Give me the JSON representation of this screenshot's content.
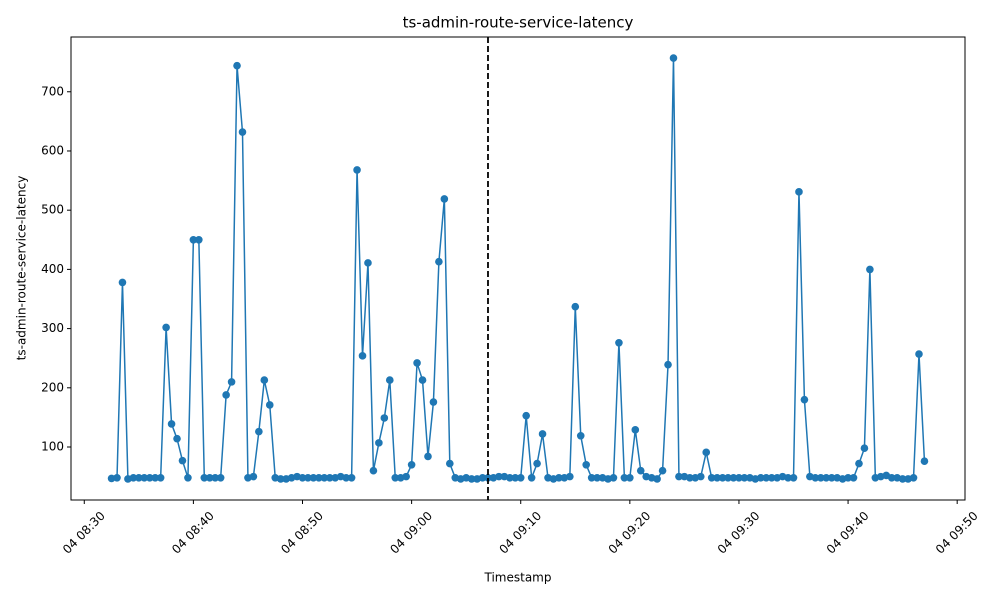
{
  "chart_data": {
    "type": "line",
    "title": "ts-admin-route-service-latency",
    "x_label": "Timestamp",
    "y_label": "ts-admin-route-service-latency",
    "color": "#1f77b4",
    "x": [
      "04 08:32:30",
      "04 08:33:00",
      "04 08:33:30",
      "04 08:34:00",
      "04 08:34:30",
      "04 08:35:00",
      "04 08:35:30",
      "04 08:36:00",
      "04 08:36:30",
      "04 08:37:00",
      "04 08:37:30",
      "04 08:38:00",
      "04 08:38:30",
      "04 08:39:00",
      "04 08:39:30",
      "04 08:40:00",
      "04 08:40:30",
      "04 08:41:00",
      "04 08:41:30",
      "04 08:42:00",
      "04 08:42:30",
      "04 08:43:00",
      "04 08:43:30",
      "04 08:44:00",
      "04 08:44:30",
      "04 08:45:00",
      "04 08:45:30",
      "04 08:46:00",
      "04 08:46:30",
      "04 08:47:00",
      "04 08:47:30",
      "04 08:48:00",
      "04 08:48:30",
      "04 08:49:00",
      "04 08:49:30",
      "04 08:50:00",
      "04 08:50:30",
      "04 08:51:00",
      "04 08:51:30",
      "04 08:52:00",
      "04 08:52:30",
      "04 08:53:00",
      "04 08:53:30",
      "04 08:54:00",
      "04 08:54:30",
      "04 08:55:00",
      "04 08:55:30",
      "04 08:56:00",
      "04 08:56:30",
      "04 08:57:00",
      "04 08:57:30",
      "04 08:58:00",
      "04 08:58:30",
      "04 08:59:00",
      "04 08:59:30",
      "04 09:00:00",
      "04 09:00:30",
      "04 09:01:00",
      "04 09:01:30",
      "04 09:02:00",
      "04 09:02:30",
      "04 09:03:00",
      "04 09:03:30",
      "04 09:04:00",
      "04 09:04:30",
      "04 09:05:00",
      "04 09:05:30",
      "04 09:06:00",
      "04 09:06:30",
      "04 09:07:00",
      "04 09:07:30",
      "04 09:08:00",
      "04 09:08:30",
      "04 09:09:00",
      "04 09:09:30",
      "04 09:10:00",
      "04 09:10:30",
      "04 09:11:00",
      "04 09:11:30",
      "04 09:12:00",
      "04 09:12:30",
      "04 09:13:00",
      "04 09:13:30",
      "04 09:14:00",
      "04 09:14:30",
      "04 09:15:00",
      "04 09:15:30",
      "04 09:16:00",
      "04 09:16:30",
      "04 09:17:00",
      "04 09:17:30",
      "04 09:18:00",
      "04 09:18:30",
      "04 09:19:00",
      "04 09:19:30",
      "04 09:20:00",
      "04 09:20:30",
      "04 09:21:00",
      "04 09:21:30",
      "04 09:22:00",
      "04 09:22:30",
      "04 09:23:00",
      "04 09:23:30",
      "04 09:24:00",
      "04 09:24:30",
      "04 09:25:00",
      "04 09:25:30",
      "04 09:26:00",
      "04 09:26:30",
      "04 09:27:00",
      "04 09:27:30",
      "04 09:28:00",
      "04 09:28:30",
      "04 09:29:00",
      "04 09:29:30",
      "04 09:30:00",
      "04 09:30:30",
      "04 09:31:00",
      "04 09:31:30",
      "04 09:32:00",
      "04 09:32:30",
      "04 09:33:00",
      "04 09:33:30",
      "04 09:34:00",
      "04 09:34:30",
      "04 09:35:00",
      "04 09:35:30",
      "04 09:36:00",
      "04 09:36:30",
      "04 09:37:00",
      "04 09:37:30",
      "04 09:38:00",
      "04 09:38:30",
      "04 09:39:00",
      "04 09:39:30",
      "04 09:40:00",
      "04 09:40:30",
      "04 09:41:00",
      "04 09:41:30",
      "04 09:42:00",
      "04 09:42:30",
      "04 09:43:00",
      "04 09:43:30",
      "04 09:44:00",
      "04 09:44:30",
      "04 09:45:00",
      "04 09:45:30",
      "04 09:46:00",
      "04 09:46:30",
      "04 09:47:00"
    ],
    "values": [
      47,
      48,
      378,
      46,
      48,
      48,
      48,
      48,
      48,
      48,
      302,
      139,
      114,
      77,
      48,
      450,
      450,
      48,
      48,
      48,
      48,
      188,
      210,
      744,
      632,
      48,
      50,
      126,
      213,
      171,
      48,
      46,
      46,
      48,
      50,
      48,
      48,
      48,
      48,
      48,
      48,
      48,
      50,
      48,
      48,
      568,
      254,
      411,
      60,
      107,
      149,
      213,
      48,
      48,
      50,
      70,
      242,
      213,
      84,
      176,
      413,
      519,
      72,
      48,
      46,
      48,
      46,
      46,
      48,
      48,
      48,
      50,
      50,
      48,
      48,
      48,
      153,
      48,
      72,
      122,
      48,
      46,
      48,
      48,
      50,
      337,
      119,
      70,
      48,
      48,
      48,
      46,
      48,
      276,
      48,
      48,
      129,
      60,
      50,
      48,
      46,
      60,
      239,
      757,
      50,
      50,
      48,
      48,
      50,
      91,
      48,
      48,
      48,
      48,
      48,
      48,
      48,
      48,
      46,
      48,
      48,
      48,
      48,
      50,
      48,
      48,
      531,
      180,
      50,
      48,
      48,
      48,
      48,
      48,
      46,
      48,
      48,
      72,
      98,
      400,
      48,
      50,
      52,
      48,
      48,
      46,
      46,
      48,
      257,
      76
    ],
    "vline_x": "04 09:07:00",
    "xlim": [
      "04 08:28:47",
      "04 09:50:43"
    ],
    "xticks": [
      "04 08:30",
      "04 08:40",
      "04 08:50",
      "04 09:00",
      "04 09:10",
      "04 09:20",
      "04 09:30",
      "04 09:40",
      "04 09:50"
    ],
    "ylim": [
      10.5,
      792.5
    ],
    "yticks": [
      100,
      200,
      300,
      400,
      500,
      600,
      700
    ]
  }
}
